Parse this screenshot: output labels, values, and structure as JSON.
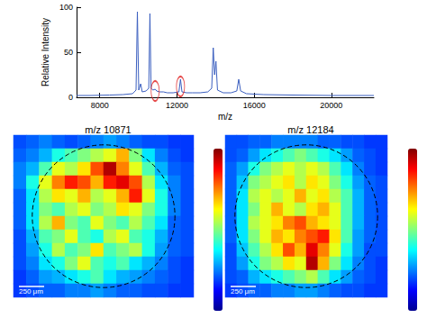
{
  "chart_data": [
    {
      "type": "line",
      "xlabel": "m/z",
      "ylabel": "Relative Intensity",
      "xlim": [
        6800,
        22200
      ],
      "ylim": [
        0,
        100
      ],
      "xticks": [
        8000,
        12000,
        16000,
        20000
      ],
      "yticks": [
        0,
        50,
        100
      ],
      "grid": false,
      "series": [
        {
          "type": "line",
          "color": "#3b5fc0",
          "x": [
            6800,
            7500,
            8500,
            9200,
            9700,
            9880,
            9950,
            10020,
            10120,
            10200,
            10400,
            10540,
            10600,
            10660,
            10750,
            10871,
            10950,
            11100,
            11300,
            11500,
            11800,
            12100,
            12184,
            12260,
            12500,
            12800,
            13200,
            13600,
            13800,
            13880,
            13950,
            14020,
            14100,
            14400,
            14800,
            15100,
            15200,
            15300,
            15600,
            16500,
            18000,
            20000,
            22200
          ],
          "values": [
            2,
            2,
            2.5,
            3,
            4,
            8,
            95,
            8,
            15,
            6,
            7,
            10,
            93,
            10,
            8,
            9,
            7,
            6,
            6,
            5,
            5,
            6,
            20,
            6,
            5,
            5,
            5,
            6,
            10,
            55,
            25,
            40,
            8,
            5,
            5,
            7,
            20,
            7,
            4,
            3,
            2.5,
            2,
            2
          ]
        },
        {
          "type": "scatter",
          "marker": "ellipse",
          "color": "#e02020",
          "x": [
            10871,
            12184
          ],
          "values": [
            7,
            12
          ]
        }
      ]
    },
    {
      "type": "heatmap",
      "title": "m/z 10871",
      "annotation": "250 μm",
      "tick_labels": false,
      "zlim": [
        0,
        100
      ],
      "cells": [
        [
          20,
          22,
          25,
          22,
          20,
          22,
          25,
          28,
          25,
          22,
          20,
          20,
          18,
          18
        ],
        [
          22,
          25,
          30,
          40,
          45,
          50,
          55,
          60,
          70,
          50,
          35,
          25,
          20,
          18
        ],
        [
          25,
          30,
          45,
          60,
          55,
          65,
          80,
          95,
          75,
          60,
          45,
          30,
          22,
          20
        ],
        [
          25,
          40,
          60,
          75,
          85,
          80,
          70,
          85,
          90,
          80,
          55,
          35,
          25,
          20
        ],
        [
          22,
          35,
          55,
          65,
          60,
          70,
          55,
          60,
          70,
          85,
          60,
          40,
          25,
          20
        ],
        [
          22,
          35,
          50,
          45,
          55,
          60,
          50,
          55,
          65,
          60,
          50,
          40,
          25,
          20
        ],
        [
          22,
          35,
          55,
          70,
          50,
          45,
          60,
          50,
          45,
          55,
          45,
          35,
          22,
          20
        ],
        [
          20,
          30,
          45,
          50,
          60,
          45,
          40,
          55,
          60,
          45,
          40,
          30,
          22,
          20
        ],
        [
          20,
          28,
          40,
          55,
          45,
          50,
          65,
          45,
          50,
          55,
          40,
          28,
          22,
          20
        ],
        [
          20,
          25,
          35,
          40,
          50,
          60,
          45,
          40,
          45,
          35,
          30,
          25,
          20,
          18
        ],
        [
          18,
          22,
          28,
          30,
          35,
          40,
          45,
          35,
          30,
          28,
          25,
          22,
          20,
          18
        ],
        [
          18,
          20,
          22,
          22,
          25,
          25,
          28,
          25,
          22,
          22,
          20,
          20,
          18,
          18
        ]
      ]
    },
    {
      "type": "heatmap",
      "title": "m/z 12184",
      "annotation": "250 μm",
      "tick_labels": false,
      "zlim": [
        0,
        100
      ],
      "cells": [
        [
          20,
          20,
          22,
          22,
          25,
          25,
          25,
          25,
          22,
          22,
          20,
          20,
          18,
          18
        ],
        [
          20,
          22,
          28,
          35,
          40,
          45,
          50,
          45,
          40,
          35,
          28,
          22,
          20,
          18
        ],
        [
          22,
          28,
          40,
          50,
          55,
          60,
          55,
          60,
          55,
          45,
          35,
          25,
          20,
          18
        ],
        [
          22,
          32,
          50,
          55,
          60,
          65,
          55,
          65,
          60,
          50,
          40,
          28,
          22,
          20
        ],
        [
          22,
          35,
          55,
          60,
          55,
          60,
          70,
          60,
          65,
          55,
          45,
          30,
          22,
          20
        ],
        [
          22,
          35,
          50,
          60,
          70,
          60,
          55,
          65,
          70,
          60,
          45,
          30,
          22,
          20
        ],
        [
          22,
          35,
          55,
          60,
          65,
          75,
          80,
          70,
          65,
          60,
          45,
          30,
          22,
          20
        ],
        [
          22,
          35,
          50,
          60,
          70,
          65,
          75,
          80,
          85,
          65,
          45,
          28,
          22,
          20
        ],
        [
          20,
          32,
          45,
          55,
          65,
          80,
          70,
          90,
          75,
          60,
          40,
          28,
          20,
          20
        ],
        [
          20,
          28,
          40,
          50,
          55,
          65,
          60,
          95,
          70,
          50,
          35,
          25,
          20,
          18
        ],
        [
          20,
          22,
          30,
          35,
          40,
          45,
          50,
          55,
          45,
          35,
          28,
          22,
          20,
          18
        ],
        [
          18,
          20,
          22,
          22,
          25,
          25,
          28,
          28,
          25,
          22,
          20,
          20,
          18,
          18
        ]
      ]
    }
  ]
}
